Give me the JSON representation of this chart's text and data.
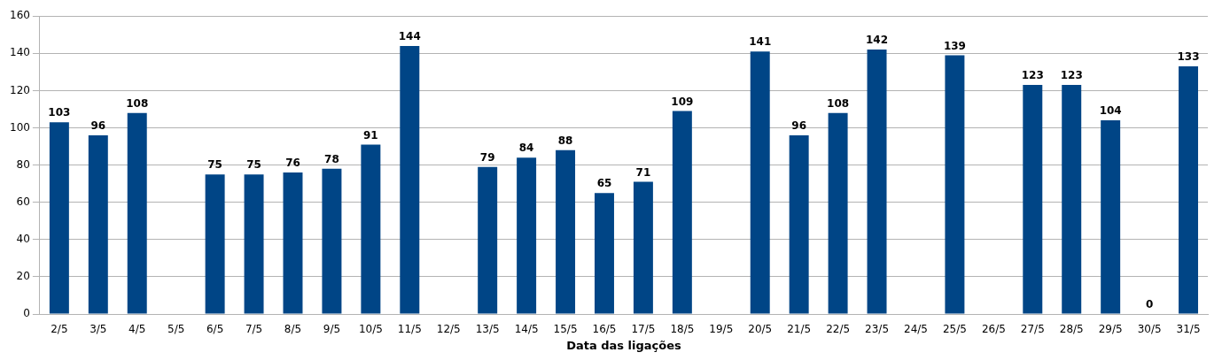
{
  "chart_data": {
    "type": "bar",
    "xlabel": "Data das ligações",
    "categories": [
      "2/5",
      "3/5",
      "4/5",
      "5/5",
      "6/5",
      "7/5",
      "8/5",
      "9/5",
      "10/5",
      "11/5",
      "12/5",
      "13/5",
      "14/5",
      "15/5",
      "16/5",
      "17/5",
      "18/5",
      "19/5",
      "20/5",
      "21/5",
      "22/5",
      "23/5",
      "24/5",
      "25/5",
      "26/5",
      "27/5",
      "28/5",
      "29/5",
      "30/5",
      "31/5"
    ],
    "values": [
      103,
      96,
      108,
      null,
      75,
      75,
      76,
      78,
      91,
      144,
      null,
      79,
      84,
      88,
      65,
      71,
      109,
      null,
      141,
      96,
      108,
      142,
      null,
      139,
      null,
      123,
      123,
      104,
      0,
      133
    ],
    "color": "#004586",
    "ylim": [
      0,
      160
    ],
    "yticks": [
      0,
      20,
      40,
      60,
      80,
      100,
      120,
      140,
      160
    ],
    "grid": "y",
    "data_labels": true,
    "legend": false
  }
}
